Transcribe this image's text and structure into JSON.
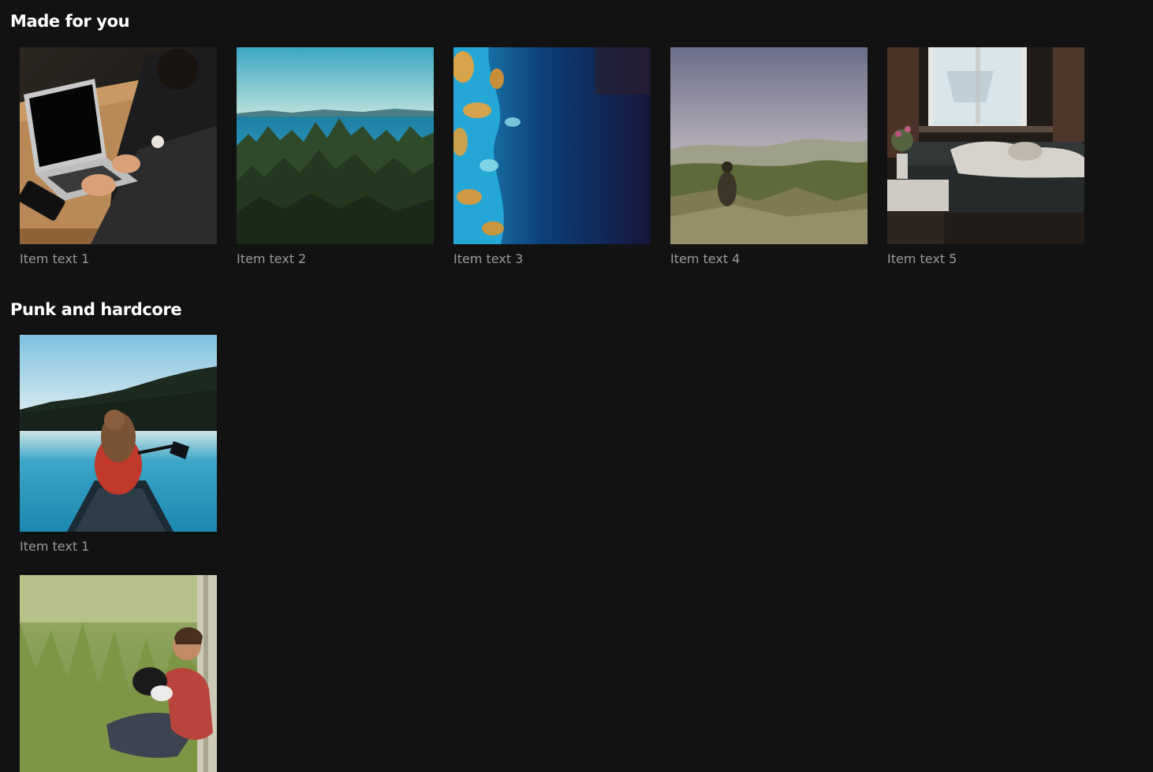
{
  "sections": [
    {
      "title": "Made for you",
      "items": [
        {
          "text": "Item text 1",
          "image": "person-typing-on-laptop"
        },
        {
          "text": "Item text 2",
          "image": "forest-and-lake"
        },
        {
          "text": "Item text 3",
          "image": "aerial-ocean-coastline"
        },
        {
          "text": "Item text 4",
          "image": "person-on-misty-mountain"
        },
        {
          "text": "Item text 5",
          "image": "person-lying-on-couch"
        }
      ]
    },
    {
      "title": "Punk and hardcore",
      "items": [
        {
          "text": "Item text 1",
          "image": "woman-in-canoe-on-lake"
        },
        {
          "text": "",
          "image": "man-with-dog-in-grass"
        }
      ]
    }
  ]
}
